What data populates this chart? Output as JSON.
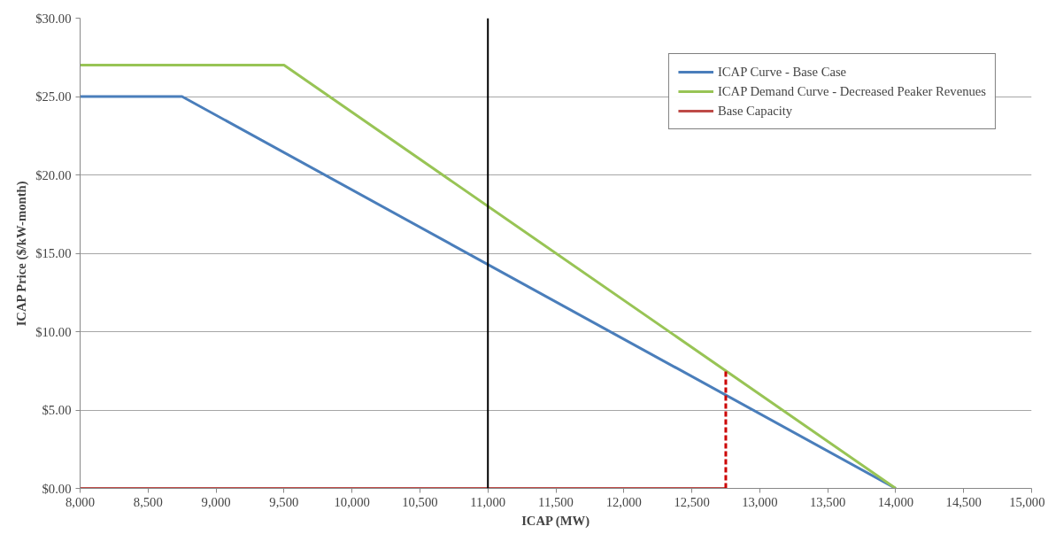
{
  "chart_data": {
    "type": "line",
    "xlabel": "ICAP (MW)",
    "ylabel": "ICAP Price ($/kW-month)",
    "xlim": [
      8000,
      15000
    ],
    "ylim": [
      0,
      30
    ],
    "xticks": [
      {
        "value": 8000,
        "label": "8,000"
      },
      {
        "value": 8500,
        "label": "8,500"
      },
      {
        "value": 9000,
        "label": "9,000"
      },
      {
        "value": 9500,
        "label": "9,500"
      },
      {
        "value": 10000,
        "label": "10,000"
      },
      {
        "value": 10500,
        "label": "10,500"
      },
      {
        "value": 11000,
        "label": "11,000"
      },
      {
        "value": 11500,
        "label": "11,500"
      },
      {
        "value": 12000,
        "label": "12,000"
      },
      {
        "value": 12500,
        "label": "12,500"
      },
      {
        "value": 13000,
        "label": "13,000"
      },
      {
        "value": 13500,
        "label": "13,500"
      },
      {
        "value": 14000,
        "label": "14,000"
      },
      {
        "value": 14500,
        "label": "14,500"
      },
      {
        "value": 15000,
        "label": "15,000"
      }
    ],
    "yticks": [
      {
        "value": 0,
        "label": "$0.00"
      },
      {
        "value": 5,
        "label": "$5.00"
      },
      {
        "value": 10,
        "label": "$10.00"
      },
      {
        "value": 15,
        "label": "$15.00"
      },
      {
        "value": 20,
        "label": "$20.00"
      },
      {
        "value": 25,
        "label": "$25.00"
      },
      {
        "value": 30,
        "label": "$30.00"
      }
    ],
    "grid": "y",
    "legend": "top right",
    "marker": "none",
    "series": [
      {
        "name": "ICAP Curve - Base Case",
        "color": "#4a7ebb",
        "x": [
          8000,
          8750,
          14000
        ],
        "values": [
          25,
          25,
          0
        ]
      },
      {
        "name": "ICAP Demand Curve - Decreased Peaker Revenues",
        "color": "#98c455",
        "x": [
          8000,
          9500,
          14000
        ],
        "values": [
          27,
          27,
          0
        ]
      },
      {
        "name": "Base Capacity",
        "color": "#be4b48",
        "x": [
          8000,
          12750
        ],
        "values": [
          0,
          0
        ]
      },
      {
        "color": "#cc0000",
        "x": [
          12750,
          12750
        ],
        "values": [
          0,
          7.5
        ],
        "line_style": "dashed"
      }
    ],
    "ref_lines": [
      {
        "axis": "x",
        "value": 11000,
        "color": "#000000"
      }
    ]
  }
}
